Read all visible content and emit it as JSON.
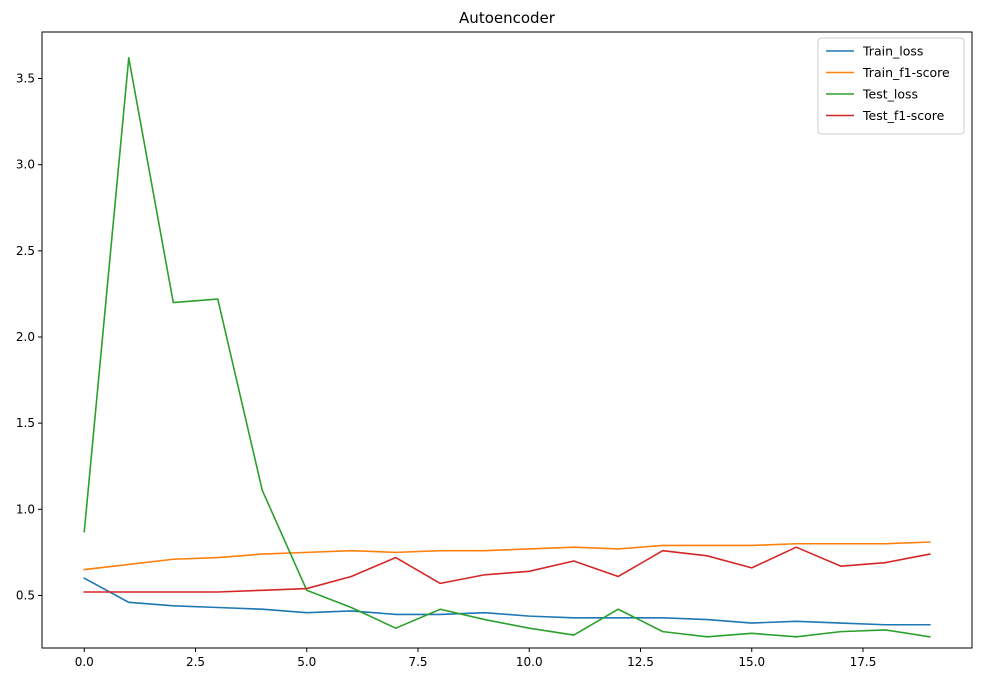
{
  "chart_data": {
    "type": "line",
    "title": "Autoencoder",
    "xlabel": "",
    "ylabel": "",
    "xlim": [
      -0.95,
      19.95
    ],
    "ylim": [
      0.195,
      3.77
    ],
    "xticks": [
      0.0,
      2.5,
      5.0,
      7.5,
      10.0,
      12.5,
      15.0,
      17.5
    ],
    "xtick_labels": [
      "0.0",
      "2.5",
      "5.0",
      "7.5",
      "10.0",
      "12.5",
      "15.0",
      "17.5"
    ],
    "yticks": [
      0.5,
      1.0,
      1.5,
      2.0,
      2.5,
      3.0,
      3.5
    ],
    "ytick_labels": [
      "0.5",
      "1.0",
      "1.5",
      "2.0",
      "2.5",
      "3.0",
      "3.5"
    ],
    "grid": false,
    "legend_position": "top-right",
    "x": [
      0,
      1,
      2,
      3,
      4,
      5,
      6,
      7,
      8,
      9,
      10,
      11,
      12,
      13,
      14,
      15,
      16,
      17,
      18,
      19
    ],
    "series": [
      {
        "name": "Train_loss",
        "color": "#1f77b4",
        "values": [
          0.6,
          0.46,
          0.44,
          0.43,
          0.42,
          0.4,
          0.41,
          0.39,
          0.39,
          0.4,
          0.38,
          0.37,
          0.37,
          0.37,
          0.36,
          0.34,
          0.35,
          0.34,
          0.33,
          0.33
        ]
      },
      {
        "name": "Train_f1-score",
        "color": "#ff7f0e",
        "values": [
          0.65,
          0.68,
          0.71,
          0.72,
          0.74,
          0.75,
          0.76,
          0.75,
          0.76,
          0.76,
          0.77,
          0.78,
          0.77,
          0.79,
          0.79,
          0.79,
          0.8,
          0.8,
          0.8,
          0.81
        ]
      },
      {
        "name": "Test_loss",
        "color": "#2ca02c",
        "values": [
          0.87,
          3.62,
          2.2,
          2.22,
          1.11,
          0.53,
          0.43,
          0.31,
          0.42,
          0.36,
          0.31,
          0.27,
          0.42,
          0.29,
          0.26,
          0.28,
          0.26,
          0.29,
          0.3,
          0.26
        ]
      },
      {
        "name": "Test_f1-score",
        "color": "#d62728",
        "values": [
          0.52,
          0.52,
          0.52,
          0.52,
          0.53,
          0.54,
          0.61,
          0.72,
          0.57,
          0.62,
          0.64,
          0.7,
          0.61,
          0.76,
          0.73,
          0.66,
          0.78,
          0.67,
          0.69,
          0.74
        ]
      }
    ]
  }
}
